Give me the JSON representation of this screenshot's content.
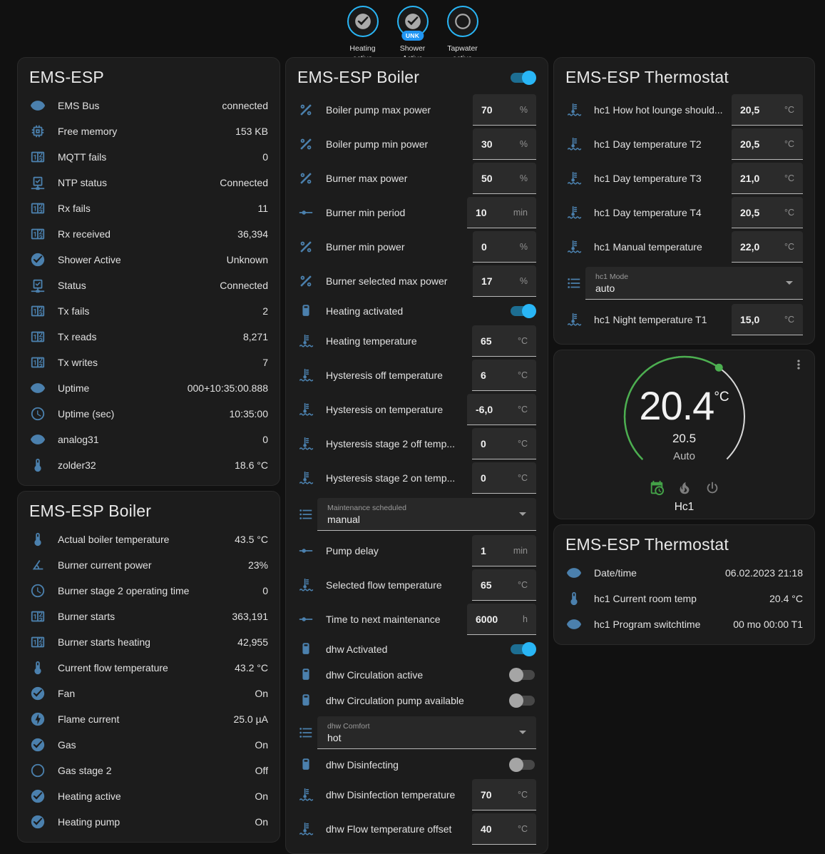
{
  "colors": {
    "page_background": "#111111",
    "card_background": "#1c1c1c",
    "entity_icon_blue": "#4b80ad",
    "accent_toggle_blue": "#29b6f6",
    "badge_border_blue": "#29b6f6",
    "badge_tag_blue": "#2196f3",
    "dial_green": "#4caf50",
    "mode_active_green": "#43a047"
  },
  "badges": [
    {
      "name": "heating-active",
      "label": "Heating active",
      "icon": "check-circle",
      "tag": ""
    },
    {
      "name": "shower-active",
      "label": "Shower Active",
      "icon": "check-circle",
      "tag": "UNK"
    },
    {
      "name": "tapwater-active",
      "label": "Tapwater active",
      "icon": "circle-outline",
      "tag": ""
    }
  ],
  "cards": {
    "ems_status": {
      "title": "EMS-ESP",
      "rows": [
        {
          "icon": "eye",
          "label": "EMS Bus",
          "value": "connected"
        },
        {
          "icon": "memory-chip",
          "label": "Free memory",
          "value": "153 KB"
        },
        {
          "icon": "counter",
          "label": "MQTT fails",
          "value": "0"
        },
        {
          "icon": "network-check",
          "label": "NTP status",
          "value": "Connected"
        },
        {
          "icon": "counter",
          "label": "Rx fails",
          "value": "11"
        },
        {
          "icon": "counter",
          "label": "Rx received",
          "value": "36,394"
        },
        {
          "icon": "check-circle",
          "label": "Shower Active",
          "value": "Unknown"
        },
        {
          "icon": "network-check",
          "label": "Status",
          "value": "Connected"
        },
        {
          "icon": "counter",
          "label": "Tx fails",
          "value": "2"
        },
        {
          "icon": "counter",
          "label": "Tx reads",
          "value": "8,271"
        },
        {
          "icon": "counter",
          "label": "Tx writes",
          "value": "7"
        },
        {
          "icon": "eye",
          "label": "Uptime",
          "value": "000+10:35:00.888"
        },
        {
          "icon": "clock",
          "label": "Uptime (sec)",
          "value": "10:35:00"
        },
        {
          "icon": "eye",
          "label": "analog31",
          "value": "0"
        },
        {
          "icon": "thermometer",
          "label": "zolder32",
          "value": "18.6 °C"
        }
      ]
    },
    "boiler_sensors": {
      "title": "EMS-ESP Boiler",
      "rows": [
        {
          "icon": "thermometer",
          "label": "Actual boiler temperature",
          "value": "43.5 °C"
        },
        {
          "icon": "angle-acute",
          "label": "Burner current power",
          "value": "23%"
        },
        {
          "icon": "clock",
          "label": "Burner stage 2 operating time",
          "value": "0"
        },
        {
          "icon": "counter",
          "label": "Burner starts",
          "value": "363,191"
        },
        {
          "icon": "counter",
          "label": "Burner starts heating",
          "value": "42,955"
        },
        {
          "icon": "thermometer",
          "label": "Current flow temperature",
          "value": "43.2 °C"
        },
        {
          "icon": "check-circle",
          "label": "Fan",
          "value": "On"
        },
        {
          "icon": "flash-circle",
          "label": "Flame current",
          "value": "25.0 µA"
        },
        {
          "icon": "check-circle",
          "label": "Gas",
          "value": "On"
        },
        {
          "icon": "circle-outline",
          "label": "Gas stage 2",
          "value": "Off"
        },
        {
          "icon": "check-circle",
          "label": "Heating active",
          "value": "On"
        },
        {
          "icon": "check-circle",
          "label": "Heating pump",
          "value": "On"
        }
      ]
    },
    "boiler_controls": {
      "title": "EMS-ESP Boiler",
      "header_toggle_on": true,
      "rows": [
        {
          "type": "number",
          "icon": "percent",
          "label": "Boiler pump max power",
          "value": "70",
          "unit": "%"
        },
        {
          "type": "number",
          "icon": "percent",
          "label": "Boiler pump min power",
          "value": "30",
          "unit": "%"
        },
        {
          "type": "number",
          "icon": "percent",
          "label": "Burner max power",
          "value": "50",
          "unit": "%"
        },
        {
          "type": "number",
          "icon": "ray-vertex",
          "label": "Burner min period",
          "value": "10",
          "unit": "min"
        },
        {
          "type": "number",
          "icon": "percent",
          "label": "Burner min power",
          "value": "0",
          "unit": "%"
        },
        {
          "type": "number",
          "icon": "percent",
          "label": "Burner selected max power",
          "value": "17",
          "unit": "%"
        },
        {
          "type": "toggle",
          "icon": "water-boiler",
          "label": "Heating activated",
          "on": true
        },
        {
          "type": "number",
          "icon": "coolant-temperature",
          "label": "Heating temperature",
          "value": "65",
          "unit": "°C"
        },
        {
          "type": "number",
          "icon": "coolant-temperature",
          "label": "Hysteresis off temperature",
          "value": "6",
          "unit": "°C"
        },
        {
          "type": "number",
          "icon": "coolant-temperature",
          "label": "Hysteresis on temperature",
          "value": "-6,0",
          "unit": "°C"
        },
        {
          "type": "number",
          "icon": "coolant-temperature",
          "label": "Hysteresis stage 2 off temp...",
          "value": "0",
          "unit": "°C"
        },
        {
          "type": "number",
          "icon": "coolant-temperature",
          "label": "Hysteresis stage 2 on temp...",
          "value": "0",
          "unit": "°C"
        },
        {
          "type": "select",
          "icon": "format-list",
          "label": "Maintenance scheduled",
          "value": "manual"
        },
        {
          "type": "number",
          "icon": "ray-vertex",
          "label": "Pump delay",
          "value": "1",
          "unit": "min"
        },
        {
          "type": "number",
          "icon": "coolant-temperature",
          "label": "Selected flow temperature",
          "value": "65",
          "unit": "°C"
        },
        {
          "type": "number",
          "icon": "ray-vertex",
          "label": "Time to next maintenance",
          "value": "6000",
          "unit": "h"
        },
        {
          "type": "toggle",
          "icon": "water-boiler",
          "label": "dhw Activated",
          "on": true
        },
        {
          "type": "toggle",
          "icon": "water-boiler",
          "label": "dhw Circulation active",
          "on": false
        },
        {
          "type": "toggle",
          "icon": "water-boiler",
          "label": "dhw Circulation pump available",
          "on": false
        },
        {
          "type": "select",
          "icon": "format-list",
          "label": "dhw Comfort",
          "value": "hot"
        },
        {
          "type": "toggle",
          "icon": "water-boiler",
          "label": "dhw Disinfecting",
          "on": false
        },
        {
          "type": "number",
          "icon": "coolant-temperature",
          "label": "dhw Disinfection temperature",
          "value": "70",
          "unit": "°C"
        },
        {
          "type": "number",
          "icon": "coolant-temperature",
          "label": "dhw Flow temperature offset",
          "value": "40",
          "unit": "°C"
        }
      ]
    },
    "thermostat_controls": {
      "title": "EMS-ESP Thermostat",
      "rows": [
        {
          "type": "number",
          "icon": "coolant-temperature",
          "label": "hc1 How hot lounge should...",
          "value": "20,5",
          "unit": "°C"
        },
        {
          "type": "number",
          "icon": "coolant-temperature",
          "label": "hc1 Day temperature T2",
          "value": "20,5",
          "unit": "°C"
        },
        {
          "type": "number",
          "icon": "coolant-temperature",
          "label": "hc1 Day temperature T3",
          "value": "21,0",
          "unit": "°C"
        },
        {
          "type": "number",
          "icon": "coolant-temperature",
          "label": "hc1 Day temperature T4",
          "value": "20,5",
          "unit": "°C"
        },
        {
          "type": "number",
          "icon": "coolant-temperature",
          "label": "hc1 Manual temperature",
          "value": "22,0",
          "unit": "°C"
        },
        {
          "type": "select",
          "icon": "format-list",
          "label": "hc1 Mode",
          "value": "auto"
        },
        {
          "type": "number",
          "icon": "coolant-temperature",
          "label": "hc1 Night temperature T1",
          "value": "15,0",
          "unit": "°C"
        }
      ]
    },
    "thermostat_dial": {
      "current": "20.4",
      "current_unit": "°C",
      "target": "20.5",
      "mode_label": "Auto",
      "zone_name": "Hc1",
      "modes": [
        {
          "icon": "calendar-clock",
          "active": true
        },
        {
          "icon": "fire",
          "active": false
        },
        {
          "icon": "power",
          "active": false
        }
      ]
    },
    "thermostat_info": {
      "title": "EMS-ESP Thermostat",
      "rows": [
        {
          "icon": "eye",
          "label": "Date/time",
          "value": "06.02.2023 21:18"
        },
        {
          "icon": "thermometer",
          "label": "hc1 Current room temp",
          "value": "20.4 °C"
        },
        {
          "icon": "eye",
          "label": "hc1 Program switchtime",
          "value": "00 mo 00:00 T1"
        }
      ]
    }
  }
}
